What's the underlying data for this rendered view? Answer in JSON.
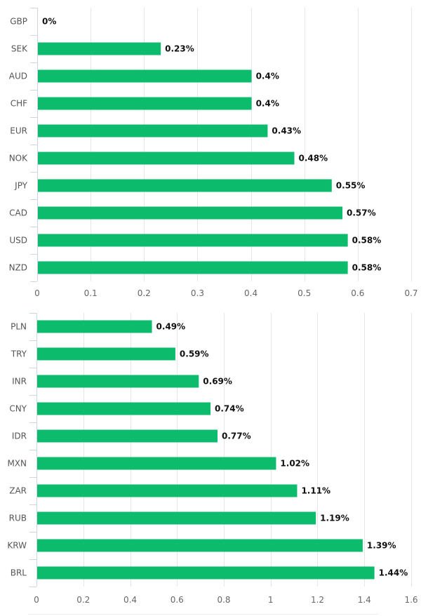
{
  "chart_data": [
    {
      "type": "bar",
      "orientation": "horizontal",
      "title": "",
      "xlabel": "",
      "ylabel": "",
      "categories": [
        "GBP",
        "SEK",
        "AUD",
        "CHF",
        "EUR",
        "NOK",
        "JPY",
        "CAD",
        "USD",
        "NZD"
      ],
      "values": [
        0,
        0.23,
        0.4,
        0.4,
        0.43,
        0.48,
        0.55,
        0.57,
        0.58,
        0.58
      ],
      "data_labels": [
        "0%",
        "0.23%",
        "0.4%",
        "0.4%",
        "0.43%",
        "0.48%",
        "0.55%",
        "0.57%",
        "0.58%",
        "0.58%"
      ],
      "xlim": [
        0,
        0.7
      ],
      "ticks": [
        "0",
        "0.1",
        "0.2",
        "0.3",
        "0.4",
        "0.5",
        "0.6",
        "0.7"
      ],
      "tick_values": [
        0,
        0.1,
        0.2,
        0.3,
        0.4,
        0.5,
        0.6,
        0.7
      ],
      "grid": true,
      "legend": "none",
      "color": "#0cbb6b"
    },
    {
      "type": "bar",
      "orientation": "horizontal",
      "title": "",
      "xlabel": "",
      "ylabel": "",
      "categories": [
        "PLN",
        "TRY",
        "INR",
        "CNY",
        "IDR",
        "MXN",
        "ZAR",
        "RUB",
        "KRW",
        "BRL"
      ],
      "values": [
        0.49,
        0.59,
        0.69,
        0.74,
        0.77,
        1.02,
        1.11,
        1.19,
        1.39,
        1.44
      ],
      "data_labels": [
        "0.49%",
        "0.59%",
        "0.69%",
        "0.74%",
        "0.77%",
        "1.02%",
        "1.11%",
        "1.19%",
        "1.39%",
        "1.44%"
      ],
      "xlim": [
        0,
        1.6
      ],
      "ticks": [
        "0",
        "0.2",
        "0.4",
        "0.6",
        "0.8",
        "1",
        "1.2",
        "1.4",
        "1.6"
      ],
      "tick_values": [
        0,
        0.2,
        0.4,
        0.6,
        0.8,
        1,
        1.2,
        1.4,
        1.6
      ],
      "grid": true,
      "legend": "none",
      "color": "#0cbb6b"
    }
  ]
}
